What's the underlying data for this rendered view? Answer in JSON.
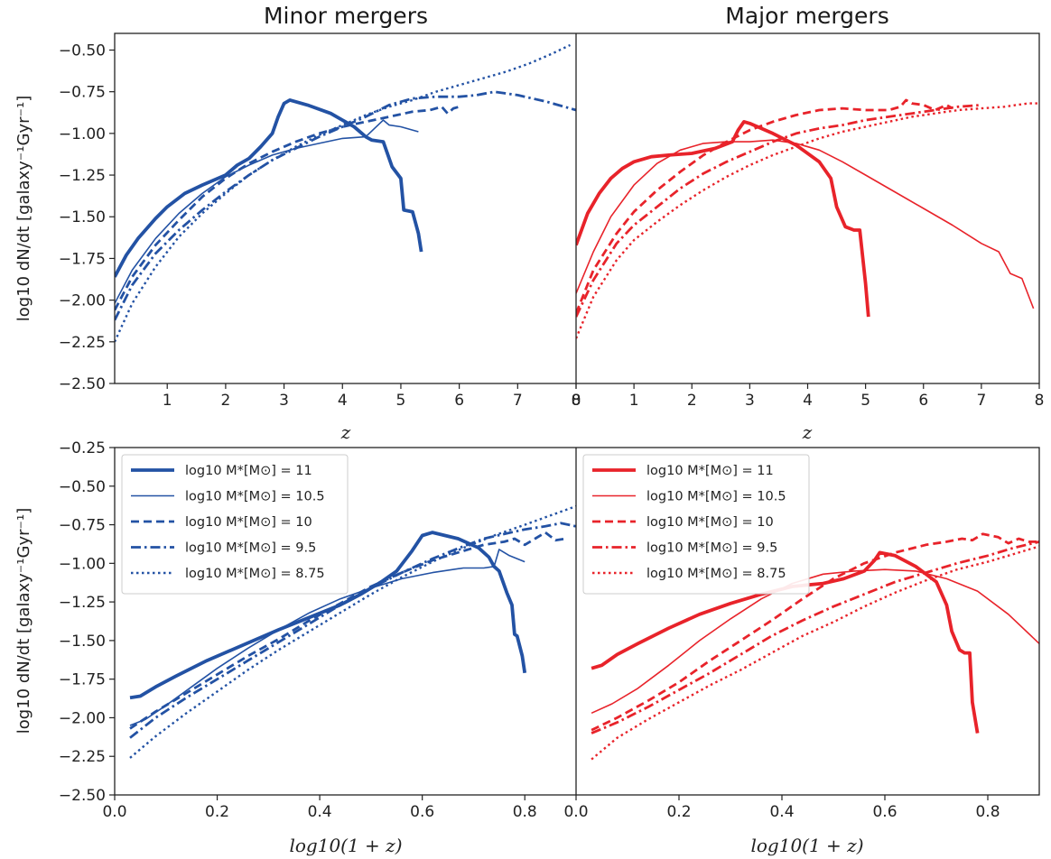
{
  "figure": {
    "title_minor": "Minor mergers",
    "title_major": "Major mergers",
    "ylabel": "log10 dN/dt [galaxy⁻¹Gyr⁻¹]",
    "xlabel_top": "z",
    "xlabel_bottom": "log10(1 + z)"
  },
  "colors": {
    "minor": "#2352a4",
    "major": "#e8232a"
  },
  "legend": {
    "entries": [
      "log10 M*[M⊙] = 11",
      "log10 M*[M⊙] = 10.5",
      "log10 M*[M⊙] = 10",
      "log10 M*[M⊙] = 9.5",
      "log10 M*[M⊙] = 8.75"
    ],
    "styles": [
      "solid-thick",
      "solid-thin",
      "dashed",
      "dashdot",
      "dotted"
    ]
  },
  "chart_data": [
    {
      "type": "line",
      "title": "Minor mergers",
      "xlabel": "z",
      "ylabel": "log10 dN/dt [galaxy⁻¹Gyr⁻¹]",
      "xlim": [
        0.1,
        8
      ],
      "ylim": [
        -2.5,
        -0.4
      ],
      "xticks": [
        1,
        2,
        3,
        4,
        5,
        6,
        7,
        8
      ],
      "yticks": [
        -2.5,
        -2.25,
        -2.0,
        -1.75,
        -1.5,
        -1.25,
        -1.0,
        -0.75,
        -0.5
      ],
      "series": [
        {
          "name": "log10 M*[M⊙] = 11",
          "x": [
            0.1,
            0.3,
            0.5,
            0.8,
            1.0,
            1.3,
            1.6,
            2.0,
            2.2,
            2.4,
            2.6,
            2.8,
            2.9,
            3.0,
            3.1,
            3.4,
            3.8,
            4.2,
            4.4,
            4.5,
            4.7,
            4.85,
            5.0,
            5.05,
            5.2,
            5.3,
            5.35
          ],
          "y": [
            -1.86,
            -1.73,
            -1.63,
            -1.51,
            -1.44,
            -1.36,
            -1.31,
            -1.25,
            -1.19,
            -1.15,
            -1.08,
            -1.0,
            -0.9,
            -0.82,
            -0.8,
            -0.83,
            -0.88,
            -0.96,
            -1.02,
            -1.04,
            -1.05,
            -1.2,
            -1.27,
            -1.46,
            -1.47,
            -1.6,
            -1.71
          ]
        },
        {
          "name": "log10 M*[M⊙] = 10.5",
          "x": [
            0.1,
            0.4,
            0.8,
            1.2,
            1.6,
            2.0,
            2.4,
            2.8,
            3.2,
            3.6,
            4.0,
            4.4,
            4.7,
            4.8,
            5.0,
            5.3
          ],
          "y": [
            -2.02,
            -1.82,
            -1.63,
            -1.48,
            -1.36,
            -1.26,
            -1.19,
            -1.13,
            -1.09,
            -1.06,
            -1.03,
            -1.02,
            -0.92,
            -0.95,
            -0.96,
            -0.99
          ]
        },
        {
          "name": "log10 M*[M⊙] = 10",
          "x": [
            0.1,
            0.4,
            0.8,
            1.2,
            1.6,
            2.0,
            2.4,
            2.8,
            3.2,
            3.6,
            4.0,
            4.4,
            4.8,
            5.2,
            5.5,
            5.7,
            5.8,
            5.9,
            6.0
          ],
          "y": [
            -2.06,
            -1.86,
            -1.67,
            -1.52,
            -1.38,
            -1.27,
            -1.18,
            -1.11,
            -1.05,
            -1.0,
            -0.96,
            -0.93,
            -0.9,
            -0.87,
            -0.86,
            -0.84,
            -0.88,
            -0.85,
            -0.84
          ]
        },
        {
          "name": "log10 M*[M⊙] = 9.5",
          "x": [
            0.1,
            0.4,
            0.8,
            1.2,
            1.6,
            2.0,
            2.4,
            2.8,
            3.2,
            3.6,
            4.0,
            4.4,
            4.8,
            5.2,
            5.6,
            6.0,
            6.3,
            6.6,
            7.0,
            7.5,
            8.0
          ],
          "y": [
            -2.12,
            -1.91,
            -1.72,
            -1.58,
            -1.46,
            -1.35,
            -1.25,
            -1.16,
            -1.09,
            -1.02,
            -0.96,
            -0.9,
            -0.83,
            -0.79,
            -0.78,
            -0.78,
            -0.77,
            -0.75,
            -0.77,
            -0.81,
            -0.86
          ]
        },
        {
          "name": "log10 M*[M⊙] = 8.75",
          "x": [
            0.1,
            0.4,
            0.8,
            1.2,
            1.6,
            2.0,
            2.4,
            2.8,
            3.2,
            3.6,
            4.0,
            4.4,
            4.8,
            5.2,
            5.6,
            6.0,
            6.4,
            6.8,
            7.2,
            7.6,
            7.9
          ],
          "y": [
            -2.25,
            -2.02,
            -1.8,
            -1.62,
            -1.48,
            -1.36,
            -1.25,
            -1.16,
            -1.08,
            -1.01,
            -0.95,
            -0.89,
            -0.84,
            -0.8,
            -0.75,
            -0.71,
            -0.67,
            -0.63,
            -0.58,
            -0.52,
            -0.47
          ]
        }
      ]
    },
    {
      "type": "line",
      "title": "Major mergers",
      "xlabel": "z",
      "ylabel": "",
      "xlim": [
        0,
        8
      ],
      "ylim": [
        -2.5,
        -0.4
      ],
      "xticks": [
        0,
        1,
        2,
        3,
        4,
        5,
        6,
        7,
        8
      ],
      "yticks": [
        -2.5,
        -2.25,
        -2.0,
        -1.75,
        -1.5,
        -1.25,
        -1.0,
        -0.75,
        -0.5
      ],
      "series": [
        {
          "name": "log10 M*[M⊙] = 11",
          "x": [
            0.0,
            0.2,
            0.4,
            0.6,
            0.8,
            1.0,
            1.3,
            1.6,
            2.0,
            2.4,
            2.7,
            2.8,
            2.9,
            3.0,
            3.4,
            3.8,
            4.2,
            4.4,
            4.5,
            4.65,
            4.8,
            4.9,
            5.0,
            5.05
          ],
          "y": [
            -1.67,
            -1.48,
            -1.36,
            -1.27,
            -1.21,
            -1.17,
            -1.14,
            -1.13,
            -1.12,
            -1.09,
            -1.05,
            -0.98,
            -0.93,
            -0.94,
            -1.0,
            -1.07,
            -1.17,
            -1.27,
            -1.44,
            -1.56,
            -1.58,
            -1.58,
            -1.9,
            -2.1
          ]
        },
        {
          "name": "log10 M*[M⊙] = 10.5",
          "x": [
            0.0,
            0.3,
            0.6,
            1.0,
            1.4,
            1.8,
            2.2,
            2.6,
            3.0,
            3.4,
            3.8,
            4.2,
            4.6,
            5.0,
            5.5,
            6.0,
            6.5,
            7.0,
            7.3,
            7.5,
            7.7,
            7.9
          ],
          "y": [
            -1.96,
            -1.71,
            -1.5,
            -1.31,
            -1.18,
            -1.1,
            -1.06,
            -1.05,
            -1.05,
            -1.04,
            -1.06,
            -1.1,
            -1.17,
            -1.25,
            -1.35,
            -1.45,
            -1.55,
            -1.66,
            -1.71,
            -1.84,
            -1.87,
            -2.05
          ]
        },
        {
          "name": "log10 M*[M⊙] = 10",
          "x": [
            0.0,
            0.3,
            0.7,
            1.0,
            1.4,
            1.8,
            2.2,
            2.6,
            3.0,
            3.4,
            3.8,
            4.2,
            4.6,
            5.0,
            5.4,
            5.6,
            5.7,
            5.8,
            6.0,
            6.2,
            6.4,
            6.5
          ],
          "y": [
            -2.08,
            -1.82,
            -1.6,
            -1.47,
            -1.34,
            -1.23,
            -1.13,
            -1.05,
            -0.98,
            -0.93,
            -0.89,
            -0.86,
            -0.85,
            -0.86,
            -0.86,
            -0.84,
            -0.8,
            -0.82,
            -0.83,
            -0.86,
            -0.83,
            -0.85
          ]
        },
        {
          "name": "log10 M*[M⊙] = 9.5",
          "x": [
            0.0,
            0.3,
            0.7,
            1.0,
            1.4,
            1.8,
            2.2,
            2.6,
            3.0,
            3.4,
            3.8,
            4.2,
            4.6,
            5.0,
            5.4,
            5.8,
            6.2,
            6.6,
            7.0
          ],
          "y": [
            -2.1,
            -1.88,
            -1.66,
            -1.55,
            -1.44,
            -1.33,
            -1.24,
            -1.17,
            -1.11,
            -1.05,
            -1.0,
            -0.97,
            -0.95,
            -0.92,
            -0.9,
            -0.88,
            -0.86,
            -0.84,
            -0.83
          ]
        },
        {
          "name": "log10 M*[M⊙] = 8.75",
          "x": [
            0.0,
            0.3,
            0.7,
            1.0,
            1.4,
            1.8,
            2.2,
            2.6,
            3.0,
            3.4,
            3.8,
            4.2,
            4.6,
            5.0,
            5.4,
            5.8,
            6.2,
            6.6,
            7.0,
            7.4,
            7.8,
            8.0
          ],
          "y": [
            -2.23,
            -1.98,
            -1.76,
            -1.64,
            -1.53,
            -1.43,
            -1.34,
            -1.26,
            -1.19,
            -1.13,
            -1.08,
            -1.03,
            -0.99,
            -0.96,
            -0.93,
            -0.9,
            -0.88,
            -0.86,
            -0.85,
            -0.84,
            -0.82,
            -0.82
          ]
        }
      ]
    },
    {
      "type": "line",
      "title": "",
      "xlabel": "log10(1 + z)",
      "ylabel": "log10 dN/dt [galaxy⁻¹Gyr⁻¹]",
      "xlim": [
        0.0,
        0.9
      ],
      "ylim": [
        -2.5,
        -0.25
      ],
      "xticks": [
        0.0,
        0.2,
        0.4,
        0.6,
        0.8
      ],
      "yticks": [
        -2.5,
        -2.25,
        -2.0,
        -1.75,
        -1.5,
        -1.25,
        -1.0,
        -0.75,
        -0.5,
        -0.25
      ],
      "series": [
        {
          "name": "log10 M*[M⊙] = 11",
          "x": [
            0.03,
            0.05,
            0.08,
            0.12,
            0.18,
            0.25,
            0.32,
            0.38,
            0.44,
            0.48,
            0.52,
            0.55,
            0.58,
            0.6,
            0.62,
            0.67,
            0.71,
            0.73,
            0.74,
            0.75,
            0.765,
            0.775,
            0.78,
            0.785,
            0.795,
            0.8
          ],
          "y": [
            -1.87,
            -1.86,
            -1.8,
            -1.73,
            -1.63,
            -1.53,
            -1.43,
            -1.35,
            -1.27,
            -1.2,
            -1.12,
            -1.05,
            -0.92,
            -0.82,
            -0.8,
            -0.84,
            -0.9,
            -0.96,
            -1.02,
            -1.05,
            -1.19,
            -1.27,
            -1.46,
            -1.47,
            -1.6,
            -1.71
          ]
        },
        {
          "name": "log10 M*[M⊙] = 10.5",
          "x": [
            0.03,
            0.06,
            0.1,
            0.15,
            0.2,
            0.26,
            0.32,
            0.38,
            0.44,
            0.5,
            0.56,
            0.62,
            0.68,
            0.72,
            0.74,
            0.75,
            0.77,
            0.8
          ],
          "y": [
            -2.05,
            -2.01,
            -1.92,
            -1.8,
            -1.68,
            -1.55,
            -1.43,
            -1.32,
            -1.23,
            -1.16,
            -1.1,
            -1.06,
            -1.03,
            -1.03,
            -1.02,
            -0.91,
            -0.95,
            -0.99
          ]
        },
        {
          "name": "log10 M*[M⊙] = 10",
          "x": [
            0.03,
            0.08,
            0.14,
            0.2,
            0.26,
            0.32,
            0.38,
            0.44,
            0.5,
            0.56,
            0.62,
            0.68,
            0.72,
            0.76,
            0.78,
            0.8,
            0.82,
            0.84,
            0.86,
            0.88
          ],
          "y": [
            -2.07,
            -1.96,
            -1.84,
            -1.72,
            -1.6,
            -1.49,
            -1.37,
            -1.26,
            -1.15,
            -1.06,
            -0.98,
            -0.92,
            -0.88,
            -0.86,
            -0.84,
            -0.88,
            -0.84,
            -0.8,
            -0.85,
            -0.84
          ]
        },
        {
          "name": "log10 M*[M⊙] = 9.5",
          "x": [
            0.03,
            0.08,
            0.14,
            0.2,
            0.26,
            0.32,
            0.38,
            0.44,
            0.5,
            0.56,
            0.62,
            0.68,
            0.72,
            0.76,
            0.8,
            0.84,
            0.87,
            0.9
          ],
          "y": [
            -2.13,
            -2.0,
            -1.87,
            -1.75,
            -1.63,
            -1.51,
            -1.39,
            -1.27,
            -1.16,
            -1.06,
            -0.97,
            -0.89,
            -0.84,
            -0.81,
            -0.78,
            -0.76,
            -0.74,
            -0.76
          ]
        },
        {
          "name": "log10 M*[M⊙] = 8.75",
          "x": [
            0.03,
            0.08,
            0.14,
            0.2,
            0.26,
            0.32,
            0.38,
            0.44,
            0.5,
            0.56,
            0.62,
            0.68,
            0.74,
            0.8,
            0.85,
            0.9
          ],
          "y": [
            -2.26,
            -2.12,
            -1.97,
            -1.83,
            -1.69,
            -1.56,
            -1.44,
            -1.32,
            -1.2,
            -1.09,
            -0.99,
            -0.9,
            -0.82,
            -0.75,
            -0.69,
            -0.63
          ]
        }
      ]
    },
    {
      "type": "line",
      "title": "",
      "xlabel": "log10(1 + z)",
      "ylabel": "",
      "xlim": [
        0.0,
        0.9
      ],
      "ylim": [
        -2.5,
        -0.25
      ],
      "xticks": [
        0.0,
        0.2,
        0.4,
        0.6,
        0.8
      ],
      "yticks": [
        -2.5,
        -2.25,
        -2.0,
        -1.75,
        -1.5,
        -1.25,
        -1.0,
        -0.75,
        -0.5,
        -0.25
      ],
      "series": [
        {
          "name": "log10 M*[M⊙] = 11",
          "x": [
            0.03,
            0.05,
            0.08,
            0.12,
            0.18,
            0.24,
            0.3,
            0.36,
            0.42,
            0.48,
            0.52,
            0.56,
            0.58,
            0.59,
            0.62,
            0.66,
            0.7,
            0.72,
            0.73,
            0.745,
            0.755,
            0.765,
            0.77,
            0.78
          ],
          "y": [
            -1.68,
            -1.66,
            -1.59,
            -1.52,
            -1.42,
            -1.33,
            -1.26,
            -1.2,
            -1.15,
            -1.13,
            -1.1,
            -1.05,
            -0.98,
            -0.93,
            -0.95,
            -1.02,
            -1.12,
            -1.27,
            -1.44,
            -1.56,
            -1.58,
            -1.58,
            -1.9,
            -2.1
          ]
        },
        {
          "name": "log10 M*[M⊙] = 10.5",
          "x": [
            0.03,
            0.07,
            0.12,
            0.18,
            0.24,
            0.3,
            0.36,
            0.42,
            0.48,
            0.54,
            0.6,
            0.66,
            0.72,
            0.78,
            0.84,
            0.9
          ],
          "y": [
            -1.97,
            -1.91,
            -1.81,
            -1.66,
            -1.5,
            -1.36,
            -1.23,
            -1.13,
            -1.07,
            -1.05,
            -1.04,
            -1.05,
            -1.1,
            -1.18,
            -1.33,
            -1.52
          ]
        },
        {
          "name": "log10 M*[M⊙] = 10",
          "x": [
            0.03,
            0.08,
            0.14,
            0.2,
            0.26,
            0.32,
            0.38,
            0.44,
            0.5,
            0.56,
            0.62,
            0.68,
            0.72,
            0.75,
            0.77,
            0.79,
            0.82,
            0.84,
            0.86,
            0.88,
            0.9
          ],
          "y": [
            -2.08,
            -2.0,
            -1.89,
            -1.77,
            -1.63,
            -1.5,
            -1.37,
            -1.23,
            -1.1,
            -1.0,
            -0.93,
            -0.88,
            -0.86,
            -0.84,
            -0.85,
            -0.81,
            -0.83,
            -0.87,
            -0.84,
            -0.86,
            -0.86
          ]
        },
        {
          "name": "log10 M*[M⊙] = 9.5",
          "x": [
            0.03,
            0.08,
            0.14,
            0.2,
            0.26,
            0.32,
            0.38,
            0.44,
            0.5,
            0.56,
            0.62,
            0.68,
            0.74,
            0.8,
            0.85,
            0.9
          ],
          "y": [
            -2.1,
            -2.03,
            -1.93,
            -1.82,
            -1.71,
            -1.59,
            -1.47,
            -1.37,
            -1.28,
            -1.2,
            -1.12,
            -1.06,
            -1.0,
            -0.95,
            -0.9,
            -0.86
          ]
        },
        {
          "name": "log10 M*[M⊙] = 8.75",
          "x": [
            0.03,
            0.08,
            0.14,
            0.2,
            0.26,
            0.32,
            0.38,
            0.44,
            0.5,
            0.56,
            0.62,
            0.68,
            0.74,
            0.8,
            0.85,
            0.9
          ],
          "y": [
            -2.27,
            -2.13,
            -2.01,
            -1.9,
            -1.79,
            -1.69,
            -1.58,
            -1.47,
            -1.38,
            -1.28,
            -1.19,
            -1.11,
            -1.04,
            -0.99,
            -0.94,
            -0.89
          ]
        }
      ]
    }
  ]
}
